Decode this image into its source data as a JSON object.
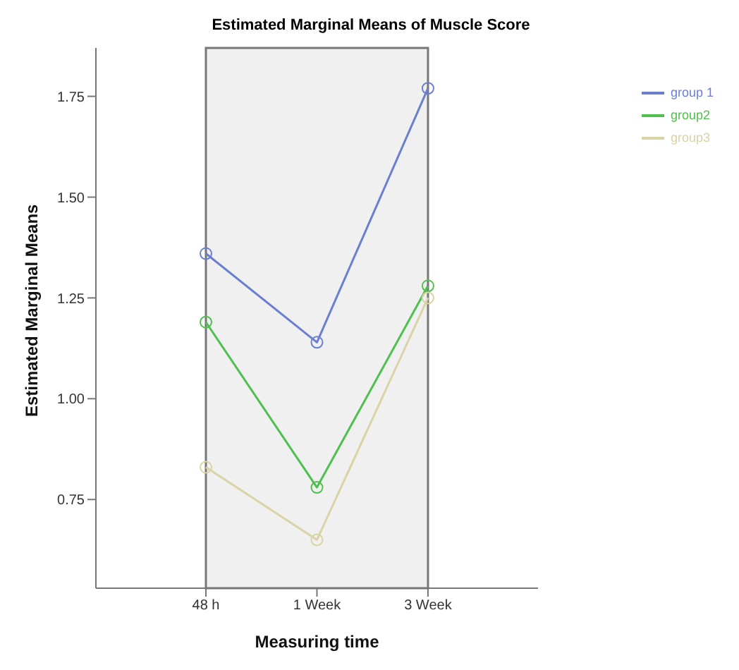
{
  "chart_data": {
    "type": "line",
    "title": "Estimated Marginal Means of Muscle Score",
    "xlabel": "Measuring time",
    "ylabel": "Estimated Marginal Means",
    "categories": [
      "48 h",
      "1 Week",
      "3 Week"
    ],
    "series": [
      {
        "name": "group 1",
        "color": "#6b7fd0",
        "values": [
          1.36,
          1.14,
          1.77
        ]
      },
      {
        "name": "group2",
        "color": "#4ec04e",
        "values": [
          1.19,
          0.78,
          1.28
        ]
      },
      {
        "name": "group3",
        "color": "#d9d3a6",
        "values": [
          0.83,
          0.65,
          1.25
        ]
      }
    ],
    "ylim": [
      0.53,
      1.87
    ],
    "yticks": [
      {
        "value": 0.75,
        "label": "0.75"
      },
      {
        "value": 1.0,
        "label": "1.00"
      },
      {
        "value": 1.25,
        "label": "1.25"
      },
      {
        "value": 1.5,
        "label": "1.50"
      },
      {
        "value": 1.75,
        "label": "1.75"
      }
    ],
    "legend": "top right",
    "marker": "circle",
    "grid": false
  }
}
